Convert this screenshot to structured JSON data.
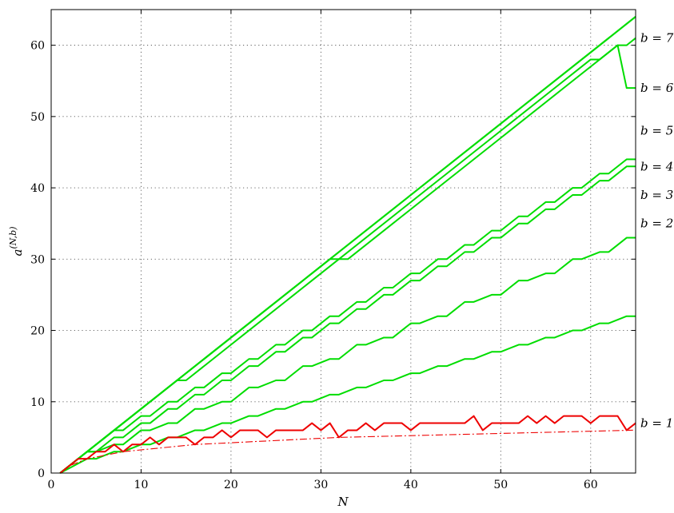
{
  "colors": {
    "green": "#00dd00",
    "red": "#ee0000",
    "grid": "#555555"
  },
  "chart_data": {
    "type": "line",
    "title": "",
    "xlabel": "N",
    "ylabel": "a^(N,b)",
    "xlim": [
      0,
      65
    ],
    "ylim": [
      0,
      65
    ],
    "grid": true,
    "x_ticks": [
      0,
      10,
      20,
      30,
      40,
      50,
      60
    ],
    "y_ticks": [
      0,
      10,
      20,
      30,
      40,
      50,
      60
    ],
    "series": [
      {
        "name": "b = 7",
        "color": "#00dd00",
        "x": [
          1,
          31,
          32,
          43,
          44,
          57,
          58,
          60,
          61,
          63,
          64,
          65
        ],
        "y": [
          0,
          30,
          30,
          41,
          42,
          55,
          56,
          58,
          58,
          60,
          60,
          61
        ]
      },
      {
        "name": "b = 6",
        "color": "#00dd00",
        "x": [
          1,
          14,
          15,
          20,
          21,
          26,
          27,
          32,
          33,
          38,
          39,
          44,
          45,
          50,
          51,
          56,
          57,
          62,
          63,
          64,
          65
        ],
        "y": [
          0,
          13,
          13,
          18,
          19,
          24,
          25,
          30,
          30,
          35,
          36,
          41,
          42,
          47,
          48,
          53,
          54,
          59,
          60,
          54,
          54
        ]
      },
      {
        "name": "b = 5",
        "color": "#00dd00",
        "x": [
          1,
          7,
          8,
          10,
          11,
          13,
          14,
          16,
          17,
          19,
          20,
          22,
          23,
          25,
          26,
          28,
          29,
          31,
          32,
          34,
          35,
          37,
          38,
          40,
          41,
          43,
          44,
          46,
          47,
          49,
          50,
          52,
          53,
          55,
          56,
          58,
          59,
          61,
          62,
          64,
          65
        ],
        "y": [
          0,
          6,
          6,
          8,
          8,
          10,
          10,
          12,
          12,
          14,
          14,
          16,
          16,
          18,
          18,
          20,
          20,
          22,
          22,
          24,
          24,
          26,
          26,
          28,
          28,
          30,
          30,
          32,
          32,
          34,
          34,
          36,
          36,
          38,
          38,
          40,
          40,
          42,
          42,
          44,
          44
        ]
      },
      {
        "name": "b = 4",
        "color": "#00dd00",
        "x": [
          1,
          4,
          5,
          7,
          8,
          10,
          11,
          13,
          14,
          16,
          17,
          19,
          20,
          22,
          23,
          25,
          26,
          28,
          29,
          31,
          32,
          34,
          35,
          37,
          38,
          40,
          41,
          43,
          44,
          46,
          47,
          49,
          50,
          52,
          53,
          55,
          56,
          58,
          59,
          61,
          62,
          64,
          65
        ],
        "y": [
          0,
          3,
          3,
          5,
          5,
          7,
          7,
          9,
          9,
          11,
          11,
          13,
          13,
          15,
          15,
          17,
          17,
          19,
          19,
          21,
          21,
          23,
          23,
          25,
          25,
          27,
          27,
          29,
          29,
          31,
          31,
          33,
          33,
          35,
          35,
          37,
          37,
          39,
          39,
          41,
          41,
          43,
          43
        ]
      },
      {
        "name": "b = 3",
        "color": "#00dd00",
        "x": [
          1,
          4,
          5,
          7,
          8,
          10,
          11,
          13,
          14,
          16,
          17,
          19,
          20,
          22,
          23,
          25,
          26,
          28,
          29,
          31,
          32,
          34,
          35,
          37,
          38,
          40,
          41,
          43,
          44,
          46,
          47,
          49,
          50,
          52,
          53,
          55,
          56,
          58,
          59,
          61,
          62,
          64,
          65
        ],
        "y": [
          0,
          3,
          3,
          4,
          4,
          6,
          6,
          7,
          7,
          9,
          9,
          10,
          10,
          12,
          12,
          13,
          13,
          15,
          15,
          16,
          16,
          18,
          18,
          19,
          19,
          21,
          21,
          22,
          22,
          24,
          24,
          25,
          25,
          27,
          27,
          28,
          28,
          30,
          30,
          31,
          31,
          33,
          33
        ]
      },
      {
        "name": "b = 2",
        "color": "#00dd00",
        "x": [
          1,
          4,
          5,
          7,
          8,
          10,
          11,
          13,
          14,
          16,
          17,
          19,
          20,
          22,
          23,
          25,
          26,
          28,
          29,
          31,
          32,
          34,
          35,
          37,
          38,
          40,
          41,
          43,
          44,
          46,
          47,
          49,
          50,
          52,
          53,
          55,
          56,
          58,
          59,
          61,
          62,
          64,
          65
        ],
        "y": [
          0,
          2,
          2,
          3,
          3,
          4,
          4,
          5,
          5,
          6,
          6,
          7,
          7,
          8,
          8,
          9,
          9,
          10,
          10,
          11,
          11,
          12,
          12,
          13,
          13,
          14,
          14,
          15,
          15,
          16,
          16,
          17,
          17,
          18,
          18,
          19,
          19,
          20,
          20,
          21,
          21,
          22,
          22
        ]
      },
      {
        "name": "b = 1",
        "color": "#ee0000",
        "x": [
          1,
          2,
          3,
          4,
          5,
          6,
          7,
          8,
          9,
          10,
          11,
          12,
          13,
          14,
          15,
          16,
          17,
          18,
          19,
          20,
          21,
          22,
          23,
          24,
          25,
          26,
          27,
          28,
          29,
          30,
          31,
          32,
          33,
          34,
          35,
          36,
          37,
          38,
          39,
          40,
          41,
          42,
          43,
          44,
          45,
          46,
          47,
          48,
          49,
          50,
          51,
          52,
          53,
          54,
          55,
          56,
          57,
          58,
          59,
          60,
          61,
          62,
          63,
          64,
          65
        ],
        "y": [
          0,
          1,
          2,
          2,
          3,
          3,
          4,
          3,
          4,
          4,
          5,
          4,
          5,
          5,
          5,
          4,
          5,
          5,
          6,
          5,
          6,
          6,
          6,
          5,
          6,
          6,
          6,
          6,
          7,
          6,
          7,
          5,
          6,
          6,
          7,
          6,
          7,
          7,
          7,
          6,
          7,
          7,
          7,
          7,
          7,
          7,
          8,
          6,
          7,
          7,
          7,
          7,
          8,
          7,
          8,
          7,
          8,
          8,
          8,
          7,
          8,
          8,
          8,
          6,
          7
        ]
      },
      {
        "name": "",
        "color": "#ee0000",
        "dashed": true,
        "function": "log2(N)",
        "x": [
          1,
          2,
          4,
          8,
          16,
          32,
          65
        ],
        "y": [
          0,
          1,
          2,
          3,
          4,
          5,
          6.02
        ]
      }
    ],
    "green_envelope": {
      "x": [
        1,
        65
      ],
      "y": [
        0,
        64
      ],
      "color": "#00dd00"
    },
    "curve_labels": [
      {
        "text": "b = 7",
        "y": 61
      },
      {
        "text": "b = 6",
        "y": 54
      },
      {
        "text": "b = 5",
        "y": 48
      },
      {
        "text": "b = 4",
        "y": 43
      },
      {
        "text": "b = 3",
        "y": 39
      },
      {
        "text": "b = 2",
        "y": 35
      },
      {
        "text": "b = 1",
        "y": 7
      }
    ]
  }
}
